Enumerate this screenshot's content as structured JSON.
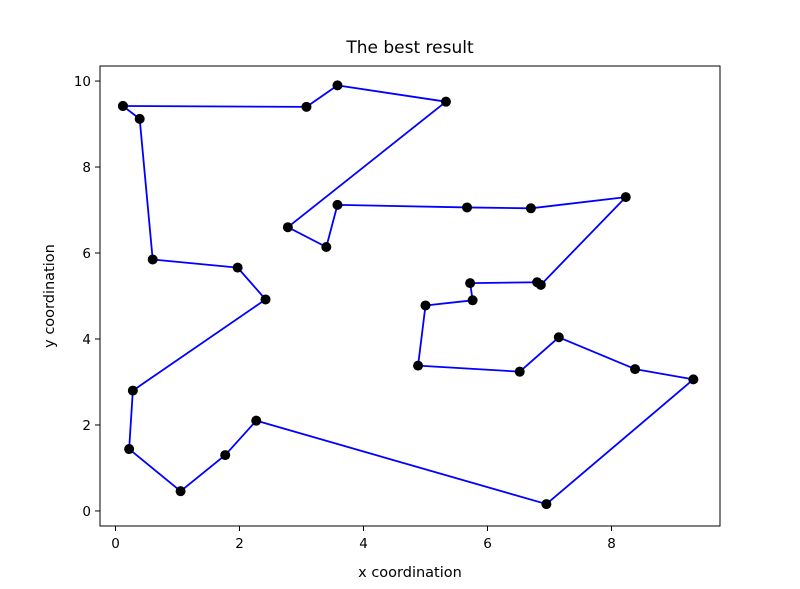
{
  "chart_data": {
    "type": "line",
    "title": "The best result",
    "xlabel": "x coordination",
    "ylabel": "y coordination",
    "xlim": [
      -0.25,
      9.75
    ],
    "ylim": [
      -0.35,
      10.35
    ],
    "xticks": [
      0,
      2,
      4,
      6,
      8
    ],
    "yticks": [
      0,
      2,
      4,
      6,
      8,
      10
    ],
    "grid": false,
    "line_color": "#0000ff",
    "marker_color": "#000000",
    "points": [
      {
        "x": 0.12,
        "y": 9.42
      },
      {
        "x": 3.08,
        "y": 9.4
      },
      {
        "x": 3.58,
        "y": 9.9
      },
      {
        "x": 5.33,
        "y": 9.52
      },
      {
        "x": 2.78,
        "y": 6.6
      },
      {
        "x": 3.4,
        "y": 6.14
      },
      {
        "x": 3.58,
        "y": 7.12
      },
      {
        "x": 5.67,
        "y": 7.06
      },
      {
        "x": 6.7,
        "y": 7.04
      },
      {
        "x": 8.23,
        "y": 7.3
      },
      {
        "x": 6.86,
        "y": 5.26
      },
      {
        "x": 6.8,
        "y": 5.32
      },
      {
        "x": 5.72,
        "y": 5.3
      },
      {
        "x": 5.76,
        "y": 4.9
      },
      {
        "x": 5.0,
        "y": 4.78
      },
      {
        "x": 4.88,
        "y": 3.38
      },
      {
        "x": 6.52,
        "y": 3.24
      },
      {
        "x": 7.15,
        "y": 4.04
      },
      {
        "x": 8.38,
        "y": 3.3
      },
      {
        "x": 9.32,
        "y": 3.06
      },
      {
        "x": 6.95,
        "y": 0.16
      },
      {
        "x": 2.27,
        "y": 2.1
      },
      {
        "x": 1.77,
        "y": 1.3
      },
      {
        "x": 1.05,
        "y": 0.46
      },
      {
        "x": 0.22,
        "y": 1.44
      },
      {
        "x": 0.28,
        "y": 2.8
      },
      {
        "x": 2.42,
        "y": 4.92
      },
      {
        "x": 1.97,
        "y": 5.66
      },
      {
        "x": 0.6,
        "y": 5.85
      },
      {
        "x": 0.39,
        "y": 9.12
      },
      {
        "x": 0.12,
        "y": 9.42
      }
    ]
  }
}
